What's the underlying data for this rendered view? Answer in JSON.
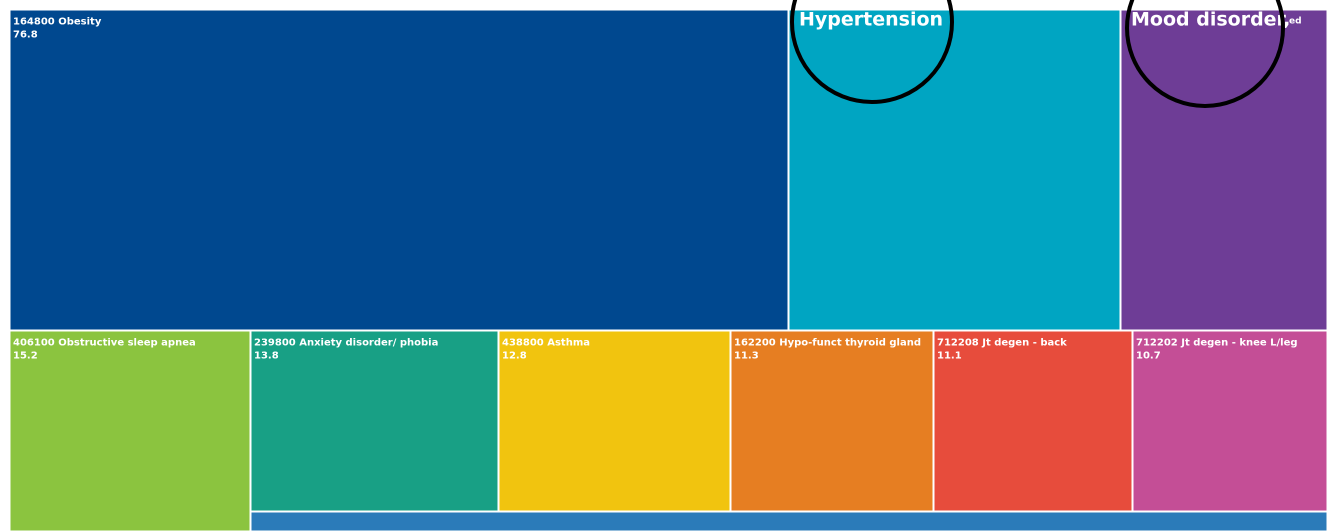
{
  "chart_data": {
    "type": "treemap",
    "categories": [
      "164800 Obesity",
      "Hypertension",
      "Mood disorder,",
      "406100 Obstructive sleep apnea",
      "239800 Anxiety disorder/ phobia",
      "438800 Asthma",
      "162200 Hypo-funct thyroid gland",
      "712208 Jt degen - back",
      "712202 Jt degen - knee L/leg"
    ],
    "values": [
      76.8,
      32.7,
      17.5,
      15.2,
      13.8,
      12.8,
      11.3,
      11.1,
      10.7
    ],
    "colors": [
      "#00488f",
      "#00a5c2",
      "#6e3d96",
      "#8bc43f",
      "#18a085",
      "#f1c40f",
      "#e67e22",
      "#e74c3c",
      "#c44e96"
    ],
    "annotations": [
      "ed"
    ]
  }
}
